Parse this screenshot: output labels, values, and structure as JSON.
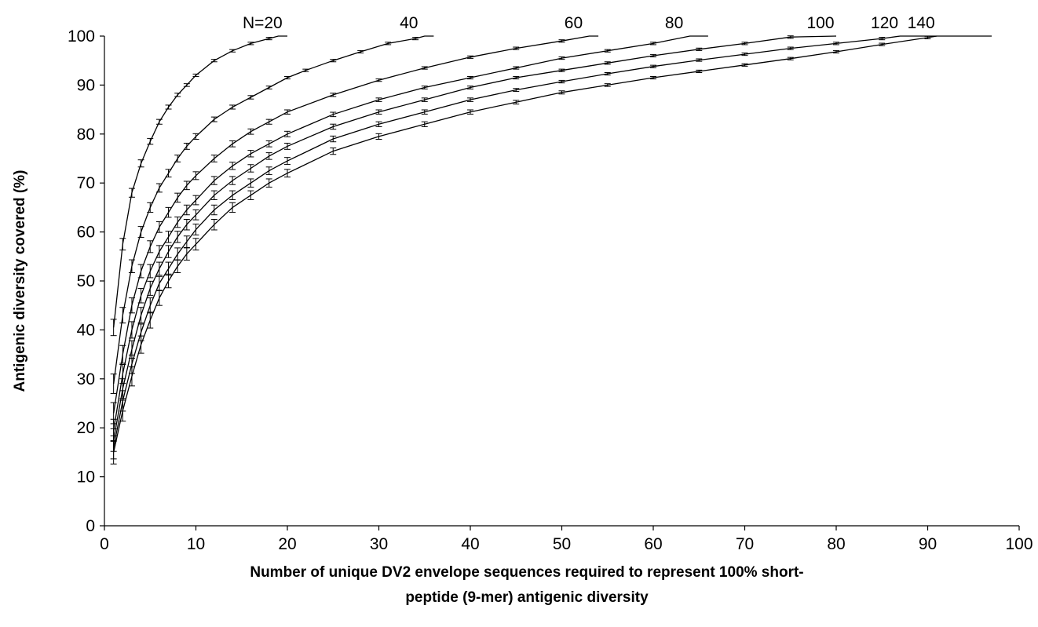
{
  "chart_data": {
    "type": "line",
    "xlabel_line1": "Number of unique DV2 envelope sequences required to represent 100% short-",
    "xlabel_line2": "peptide (9-mer) antigenic diversity",
    "ylabel": "Antigenic diversity covered (%)",
    "xlim": [
      0,
      100
    ],
    "ylim": [
      0,
      100
    ],
    "x_ticks": [
      0,
      10,
      20,
      30,
      40,
      50,
      60,
      70,
      80,
      90,
      100
    ],
    "y_ticks": [
      0,
      10,
      20,
      30,
      40,
      50,
      60,
      70,
      80,
      90,
      100
    ],
    "grid": false,
    "error_bars": true,
    "series": [
      {
        "name": "N=20",
        "x": [
          1,
          2,
          3,
          4,
          5,
          6,
          7,
          8,
          9,
          10,
          12,
          14,
          16,
          18,
          19,
          20
        ],
        "y": [
          40.5,
          57.5,
          68,
          74,
          78.5,
          82.5,
          85.5,
          88,
          90,
          92,
          95,
          97,
          98.5,
          99.5,
          100,
          100
        ]
      },
      {
        "name": "40",
        "x": [
          1,
          2,
          3,
          4,
          5,
          6,
          7,
          8,
          9,
          10,
          12,
          14,
          16,
          18,
          20,
          22,
          25,
          28,
          31,
          34,
          35,
          36
        ],
        "y": [
          29,
          43,
          53,
          60,
          65,
          69,
          72,
          75,
          77.5,
          79.5,
          83,
          85.5,
          87.5,
          89.5,
          91.5,
          93,
          95,
          96.8,
          98.5,
          99.5,
          100,
          100
        ]
      },
      {
        "name": "60",
        "x": [
          1,
          2,
          3,
          4,
          5,
          6,
          7,
          8,
          9,
          10,
          12,
          14,
          16,
          18,
          20,
          25,
          30,
          35,
          40,
          45,
          50,
          53,
          54
        ],
        "y": [
          23,
          35,
          45,
          52,
          57,
          61,
          64,
          67,
          69.5,
          71.5,
          75,
          78,
          80.5,
          82.5,
          84.5,
          88,
          91,
          93.5,
          95.7,
          97.5,
          99,
          100,
          100
        ]
      },
      {
        "name": "80",
        "x": [
          1,
          2,
          3,
          4,
          5,
          6,
          7,
          8,
          9,
          10,
          12,
          14,
          16,
          18,
          20,
          25,
          30,
          35,
          40,
          45,
          50,
          55,
          60,
          64,
          66
        ],
        "y": [
          19.5,
          31,
          40,
          47,
          52,
          56,
          59,
          62,
          64.5,
          66.5,
          70.5,
          73.5,
          76,
          78,
          80,
          84,
          87,
          89.5,
          91.5,
          93.5,
          95.5,
          97,
          98.5,
          100,
          100
        ]
      },
      {
        "name": "100",
        "x": [
          1,
          2,
          3,
          4,
          5,
          6,
          7,
          8,
          9,
          10,
          12,
          14,
          16,
          18,
          20,
          25,
          30,
          35,
          40,
          45,
          50,
          55,
          60,
          65,
          70,
          75,
          80
        ],
        "y": [
          17.5,
          28,
          36,
          43,
          48.5,
          52.5,
          56,
          59,
          61.5,
          63.5,
          67.5,
          70.5,
          73,
          75.5,
          77.5,
          81.5,
          84.5,
          87,
          89.5,
          91.5,
          93,
          94.5,
          96,
          97.3,
          98.5,
          99.8,
          100
        ]
      },
      {
        "name": "120",
        "x": [
          1,
          2,
          3,
          4,
          5,
          6,
          7,
          8,
          9,
          10,
          12,
          14,
          16,
          18,
          20,
          25,
          30,
          35,
          40,
          45,
          50,
          55,
          60,
          65,
          70,
          75,
          80,
          85,
          87,
          91
        ],
        "y": [
          16,
          25.5,
          33,
          39.5,
          45,
          49.5,
          52.5,
          55.5,
          58,
          60.5,
          64.5,
          67.5,
          70,
          72.5,
          74.5,
          79,
          82,
          84.5,
          87,
          89,
          90.7,
          92.3,
          93.8,
          95.1,
          96.3,
          97.5,
          98.5,
          99.5,
          100,
          100
        ]
      },
      {
        "name": "140",
        "x": [
          1,
          2,
          3,
          4,
          5,
          6,
          7,
          8,
          9,
          10,
          12,
          14,
          16,
          18,
          20,
          25,
          30,
          35,
          40,
          45,
          50,
          55,
          60,
          65,
          70,
          75,
          80,
          85,
          90,
          91,
          97
        ],
        "y": [
          15,
          23.5,
          30.5,
          37,
          42,
          46.5,
          50,
          53,
          55.5,
          57.5,
          61.5,
          65,
          67.5,
          70,
          72,
          76.5,
          79.5,
          82,
          84.5,
          86.5,
          88.5,
          90,
          91.5,
          92.8,
          94.1,
          95.4,
          96.8,
          98.3,
          99.7,
          100,
          100
        ]
      }
    ]
  }
}
